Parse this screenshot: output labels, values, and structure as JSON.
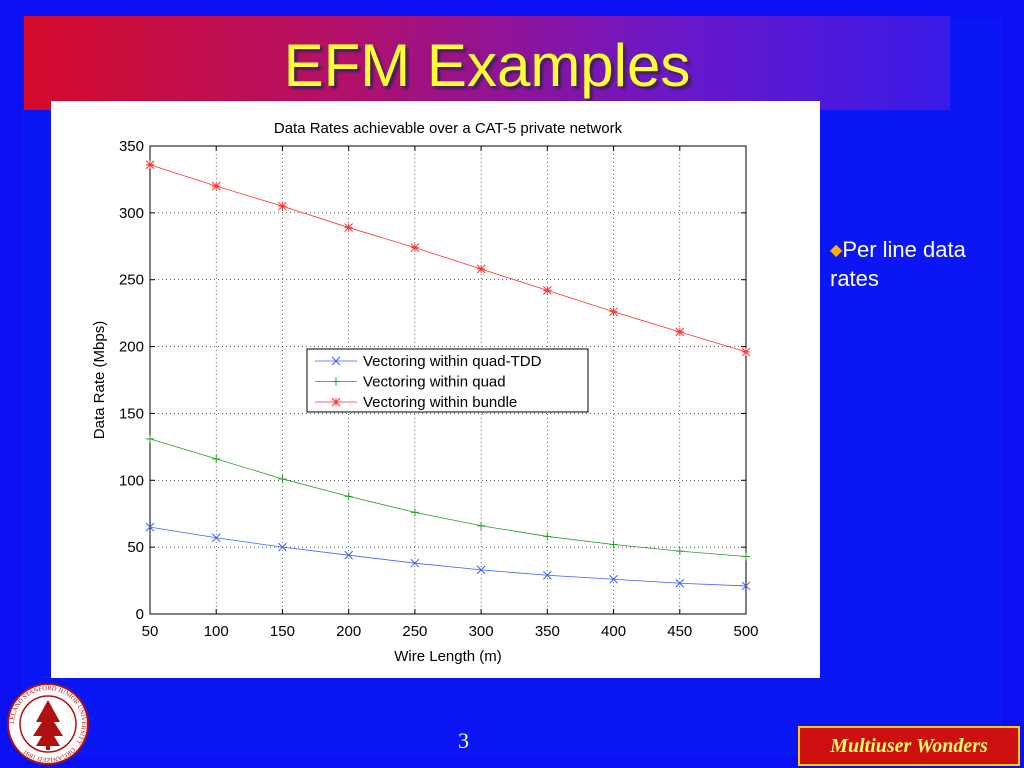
{
  "slide": {
    "title": "EFM Examples",
    "bullet_text": "Per line data rates",
    "page_number": "3",
    "brand_label": "Multiuser Wonders",
    "seal_text": "LELAND STANFORD JUNIOR UNIVERSITY · ORGANIZED 1891",
    "colors": {
      "background": "#0a10f2",
      "title_text": "#ffff33",
      "bullet_diamond": "#ffb000",
      "brand_box": "#cc1010",
      "seal": "#b01010"
    }
  },
  "chart_data": {
    "type": "line",
    "title": "Data Rates achievable over a CAT-5 private network",
    "xlabel": "Wire Length (m)",
    "ylabel": "Data Rate (Mbps)",
    "xlim": [
      50,
      500
    ],
    "ylim": [
      0,
      350
    ],
    "xticks": [
      50,
      100,
      150,
      200,
      250,
      300,
      350,
      400,
      450,
      500
    ],
    "yticks": [
      0,
      50,
      100,
      150,
      200,
      250,
      300,
      350
    ],
    "grid": true,
    "legend_position": "center",
    "x": [
      50,
      100,
      150,
      200,
      250,
      300,
      350,
      400,
      450,
      500
    ],
    "series": [
      {
        "name": "Vectoring within quad-TDD",
        "color": "#4060ff",
        "marker": "x",
        "values": [
          65,
          57,
          50,
          44,
          38,
          33,
          29,
          26,
          23,
          21
        ]
      },
      {
        "name": "Vectoring within quad",
        "color": "#22a022",
        "marker": "+",
        "values": [
          131,
          116,
          101,
          88,
          76,
          66,
          58,
          52,
          47,
          43
        ]
      },
      {
        "name": "Vectoring within bundle",
        "color": "#ff3030",
        "marker": "*",
        "values": [
          336,
          320,
          305,
          289,
          274,
          258,
          242,
          226,
          211,
          196
        ]
      }
    ]
  }
}
